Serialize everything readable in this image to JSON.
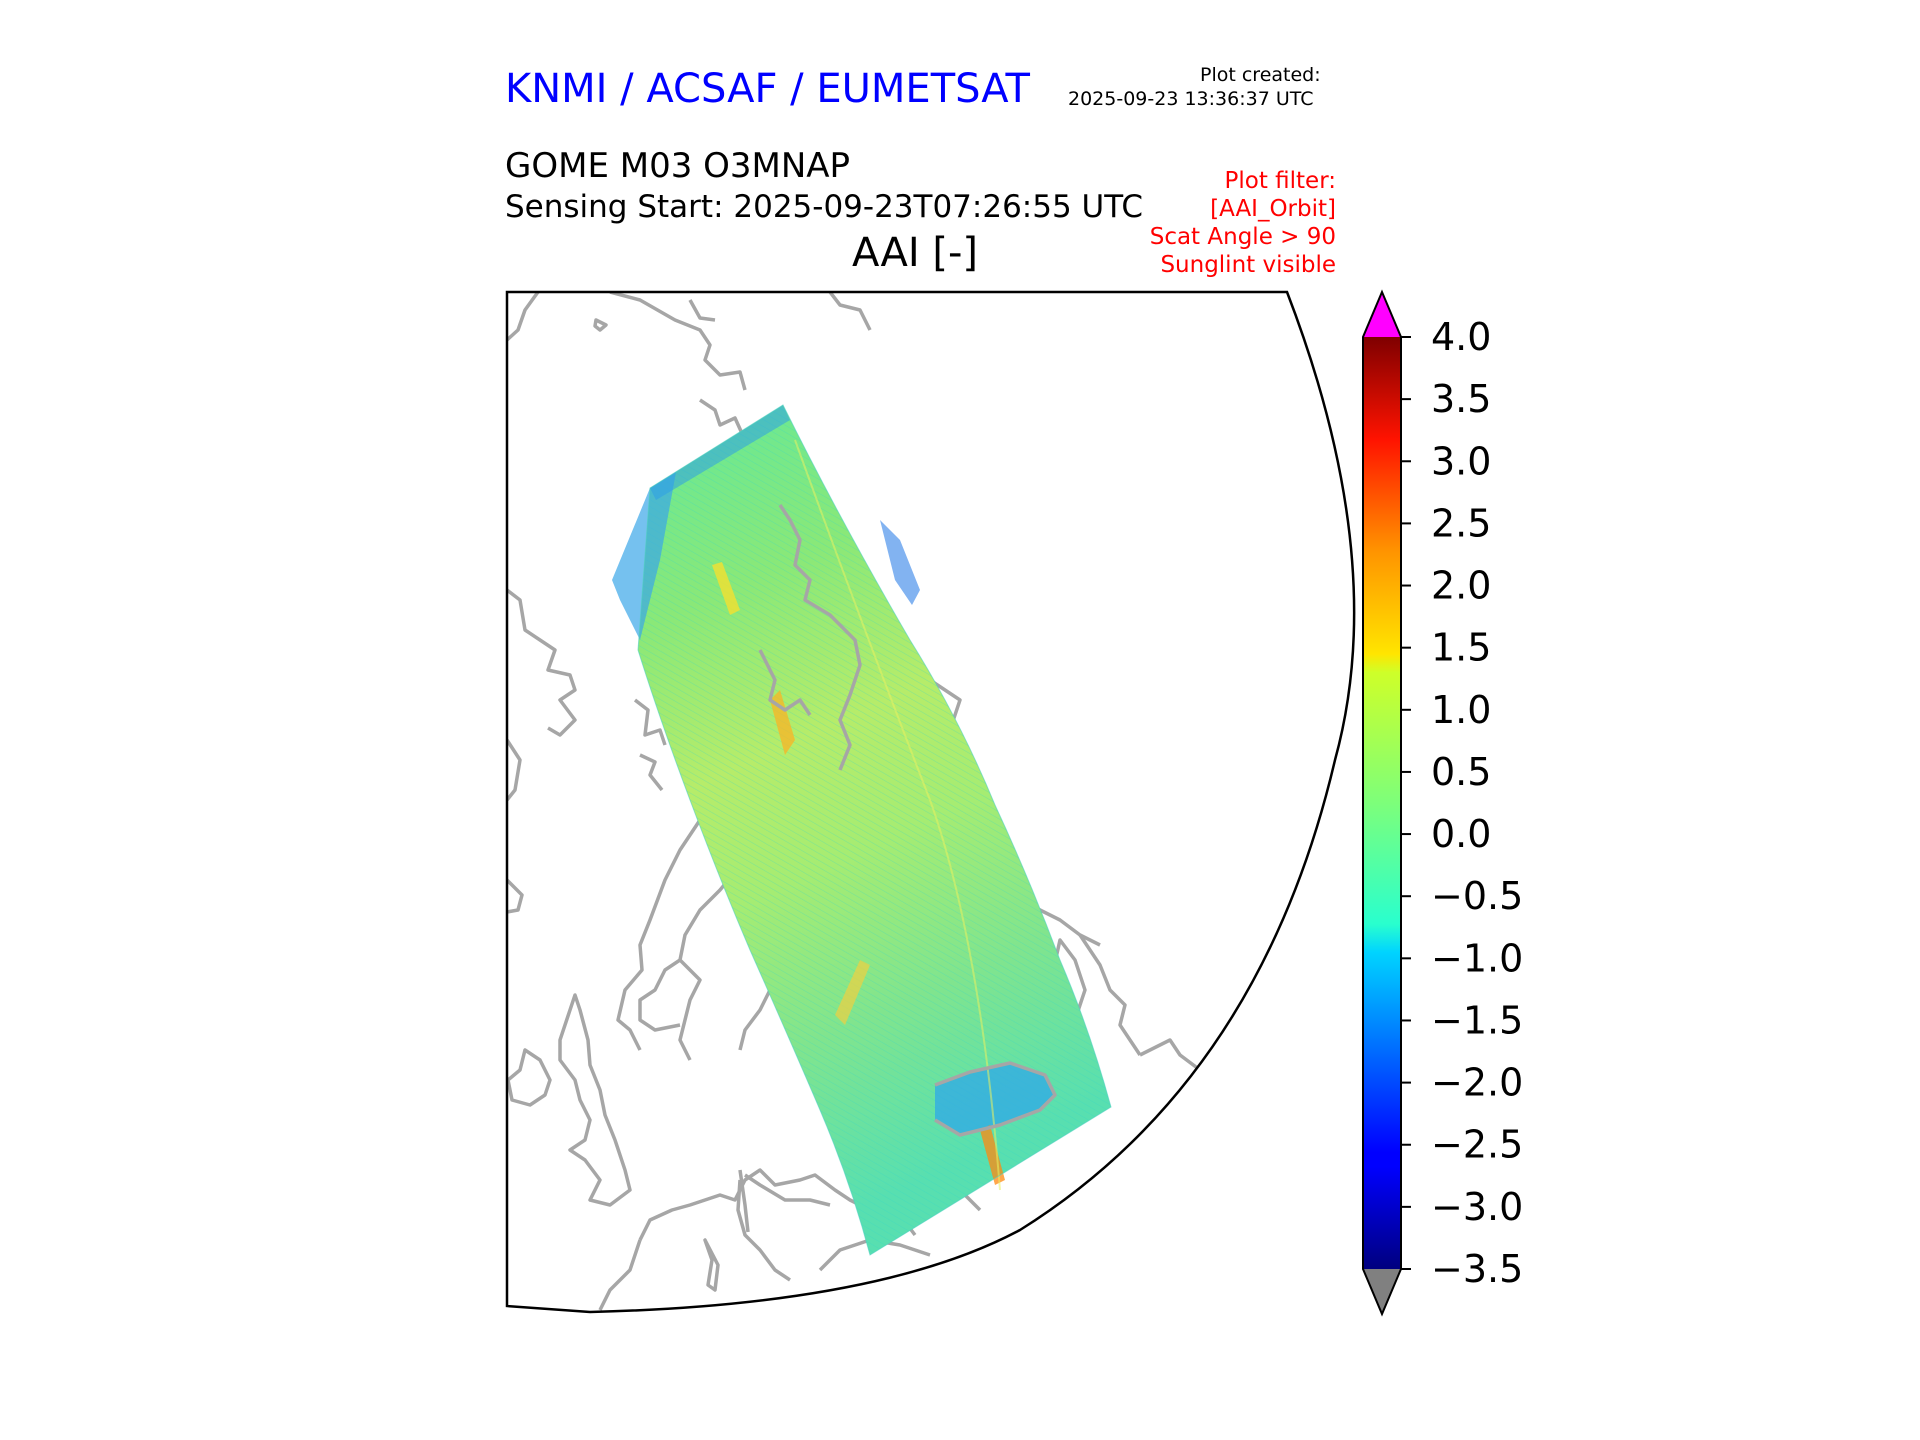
{
  "header": {
    "brand": "KNMI / ACSAF / EUMETSAT",
    "brand_color": "#0000ff",
    "plot_created_label": "Plot created:",
    "plot_created_time": "2025-09-23 13:36:37 UTC",
    "product": "GOME M03 O3MNAP",
    "sensing_start": "Sensing Start: 2025-09-23T07:26:55 UTC",
    "quantity": "AAI [-]"
  },
  "filter": {
    "color": "#ff0000",
    "title": "Plot filter:",
    "lines": [
      "[AAI_Orbit]",
      "Scat Angle > 90",
      "Sunglint visible"
    ]
  },
  "colorbar": {
    "min": -3.5,
    "max": 4.0,
    "tick_labels": [
      "4.0",
      "3.5",
      "3.0",
      "2.5",
      "2.0",
      "1.5",
      "1.0",
      "0.5",
      "0.0",
      "−0.5",
      "−1.0",
      "−1.5",
      "−2.0",
      "−2.5",
      "−3.0",
      "−3.5"
    ],
    "over_color": "#ff00ff",
    "under_color": "#808080",
    "colormap": "jet"
  },
  "map": {
    "coastline_color": "#a6a6a6",
    "swath_dominant_value_range": "-0.5 to 1.0"
  }
}
